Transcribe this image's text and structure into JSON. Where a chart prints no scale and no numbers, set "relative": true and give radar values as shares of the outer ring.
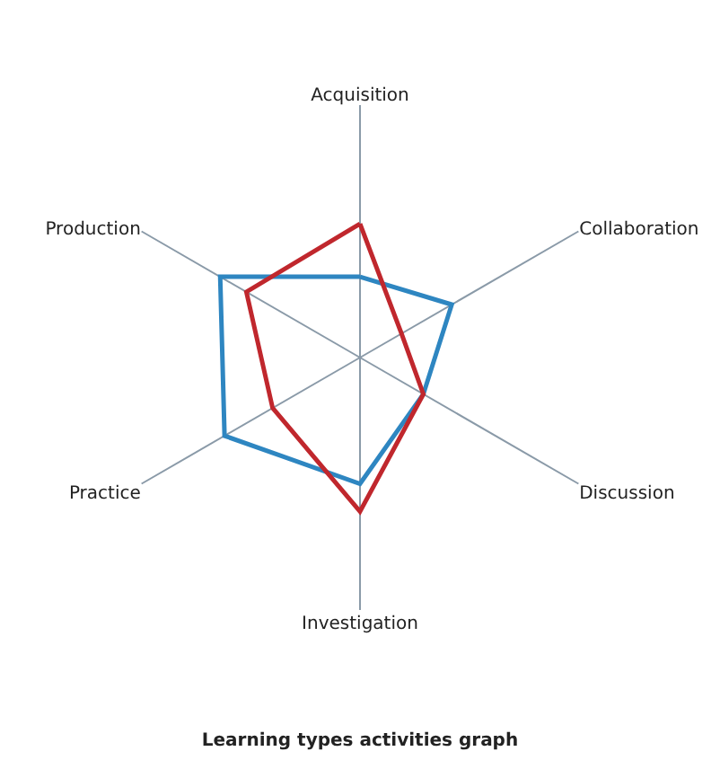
{
  "chart_data": {
    "type": "radar",
    "title": "Learning types activities graph",
    "relative": true,
    "grid": true,
    "marker": "none",
    "line_style": "solid",
    "categories": [
      "Acquisition",
      "Collaboration",
      "Discussion",
      "Investigation",
      "Practice",
      "Production"
    ],
    "series": [
      {
        "color": "#2e86c1",
        "values": [
          0.32,
          0.42,
          0.29,
          0.5,
          0.62,
          0.64
        ]
      },
      {
        "color": "#c0272d",
        "values": [
          0.53,
          0.19,
          0.29,
          0.61,
          0.4,
          0.52
        ]
      }
    ]
  }
}
